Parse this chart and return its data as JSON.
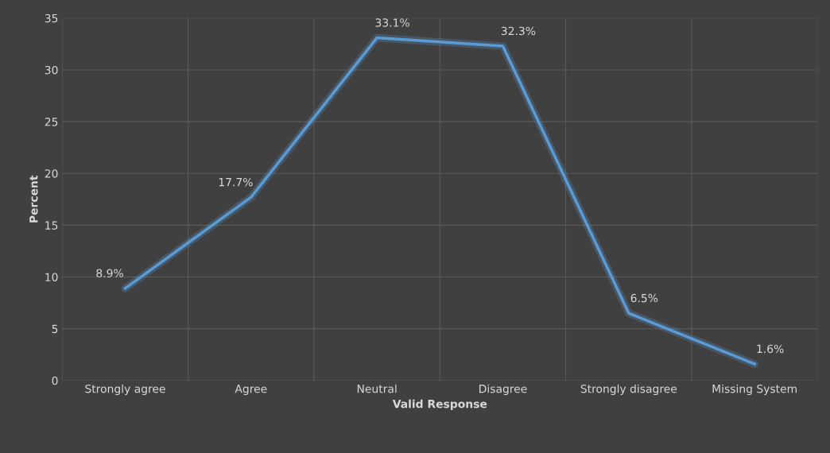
{
  "chart_data": {
    "type": "line",
    "xlabel": "Valid Response",
    "ylabel": "Percent",
    "categories": [
      "Strongly agree",
      "Agree",
      "Neutral",
      "Disagree",
      "Strongly disagree",
      "Missing System"
    ],
    "series": [
      {
        "color": "#5b9bd5",
        "values": [
          8.9,
          17.7,
          33.1,
          32.3,
          6.5,
          1.6
        ],
        "value_labels": [
          "8.9%",
          "17.7%",
          "33.1%",
          "32.3%",
          "6.5%",
          "1.6%"
        ]
      }
    ],
    "ylim": [
      0,
      35
    ],
    "yticks": [
      0,
      5,
      10,
      15,
      20,
      25,
      30,
      35
    ],
    "grid": true,
    "marker": "none",
    "line_style": "solid"
  }
}
